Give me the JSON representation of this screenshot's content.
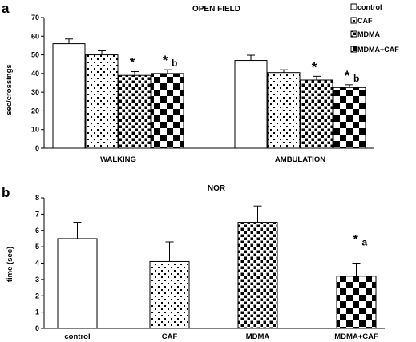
{
  "colors": {
    "ink": "#000000",
    "paper": "#ffffff"
  },
  "legend": [
    "control",
    "CAF",
    "MDMA",
    "MDMA+CAF"
  ],
  "chart_data": [
    {
      "panel": "a",
      "type": "bar",
      "title": "OPEN FIELD",
      "ylabel": "sec/crossings",
      "xlabel": "",
      "ylim": [
        0,
        70
      ],
      "yticks": [
        0,
        10,
        20,
        30,
        40,
        50,
        60,
        70
      ],
      "categories": [
        "WALKING",
        "AMBULATION"
      ],
      "series": [
        {
          "name": "control",
          "pattern": "none",
          "values": [
            56,
            47
          ],
          "errors": [
            2.5,
            2.8
          ]
        },
        {
          "name": "CAF",
          "pattern": "dots",
          "values": [
            50,
            40.5
          ],
          "errors": [
            2.2,
            1.5
          ]
        },
        {
          "name": "MDMA",
          "pattern": "squares",
          "values": [
            39,
            36.5
          ],
          "errors": [
            2.0,
            2.0
          ]
        },
        {
          "name": "MDMA+CAF",
          "pattern": "checker",
          "values": [
            40,
            32.5
          ],
          "errors": [
            2.0,
            1.5
          ]
        }
      ],
      "annotations": [
        {
          "category": 0,
          "series": 2,
          "star": "*",
          "letter": ""
        },
        {
          "category": 0,
          "series": 3,
          "star": "*",
          "letter": "b"
        },
        {
          "category": 1,
          "series": 2,
          "star": "*",
          "letter": ""
        },
        {
          "category": 1,
          "series": 3,
          "star": "*",
          "letter": "b"
        }
      ]
    },
    {
      "panel": "b",
      "type": "bar",
      "title": "NOR",
      "ylabel": "time (sec)",
      "xlabel": "",
      "ylim": [
        0,
        8
      ],
      "yticks": [
        0,
        1,
        2,
        3,
        4,
        5,
        6,
        7,
        8
      ],
      "categories": [
        "control",
        "CAF",
        "MDMA",
        "MDMA+CAF"
      ],
      "series": [
        {
          "name": "control",
          "pattern": "none",
          "value": 5.5,
          "error": 1.0
        },
        {
          "name": "CAF",
          "pattern": "dots",
          "value": 4.1,
          "error": 1.2
        },
        {
          "name": "MDMA",
          "pattern": "squares",
          "value": 6.5,
          "error": 1.0
        },
        {
          "name": "MDMA+CAF",
          "pattern": "checker",
          "value": 3.2,
          "error": 0.8
        }
      ],
      "annotations": [
        {
          "category": 3,
          "star": "*",
          "letter": "a"
        }
      ]
    }
  ]
}
